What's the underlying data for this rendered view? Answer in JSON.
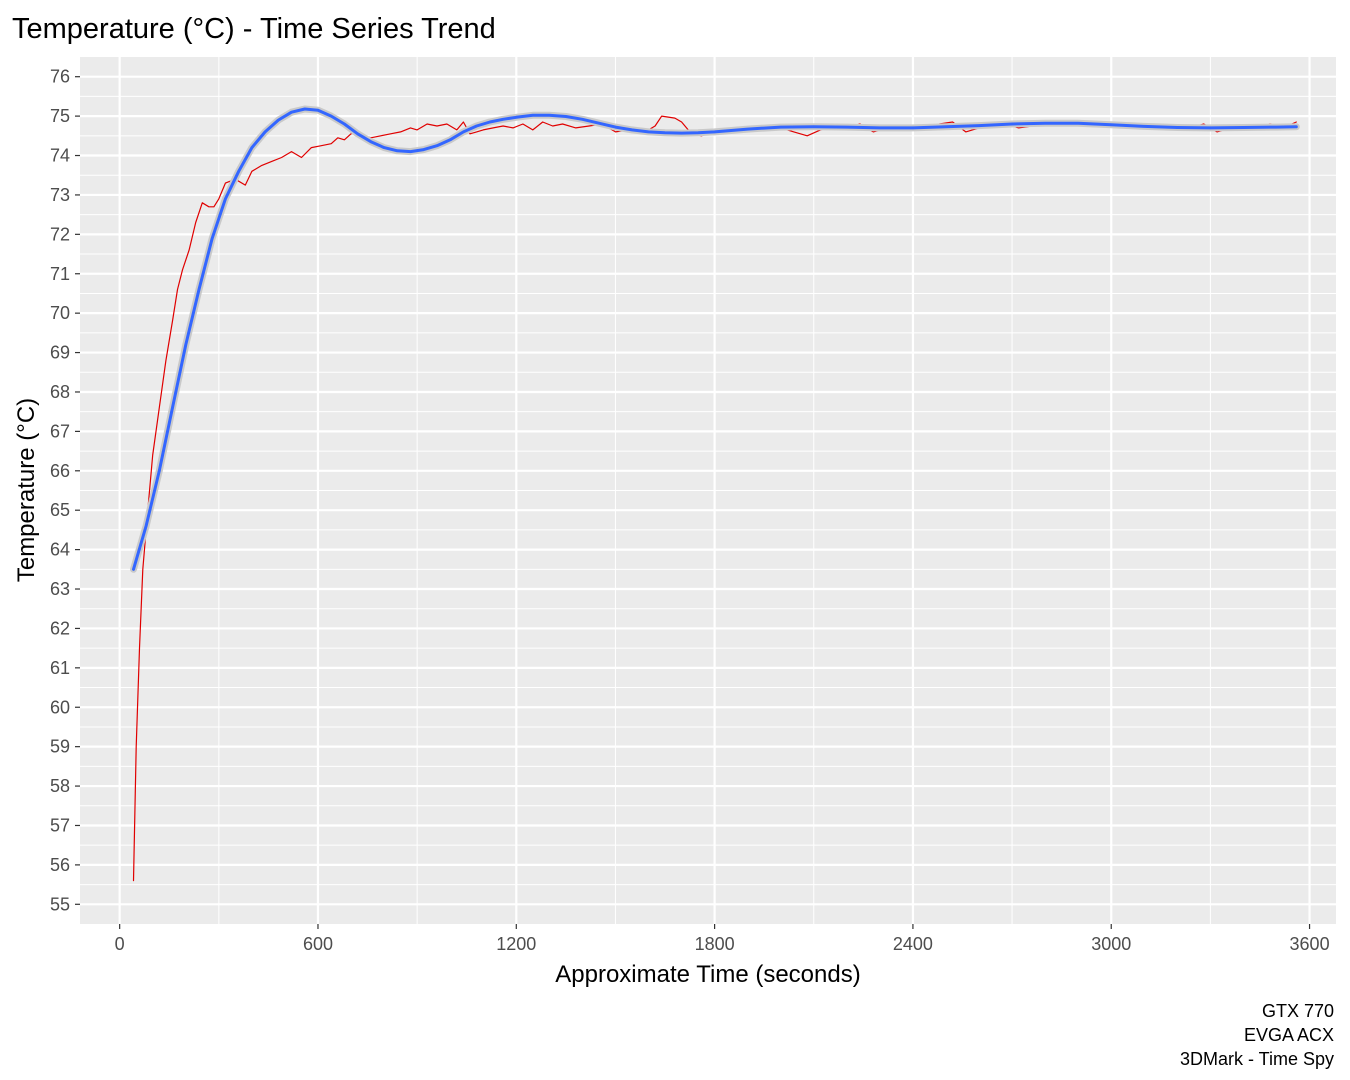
{
  "chart_data": {
    "type": "line",
    "title": "Temperature (°C) - Time Series Trend",
    "xlabel": "Approximate Time (seconds)",
    "ylabel": "Temperature (°C)",
    "xlim": [
      -120,
      3680
    ],
    "ylim": [
      54.5,
      76.5
    ],
    "x_ticks": [
      0,
      600,
      1200,
      1800,
      2400,
      3000,
      3600
    ],
    "y_ticks": [
      55,
      56,
      57,
      58,
      59,
      60,
      61,
      62,
      63,
      64,
      65,
      66,
      67,
      68,
      69,
      70,
      71,
      72,
      73,
      74,
      75,
      76
    ],
    "grid": true,
    "legend": "none",
    "caption": [
      "GTX 770",
      "EVGA ACX",
      "3DMark - Time Spy"
    ],
    "series": [
      {
        "color": "#e00000",
        "points": [
          [
            42,
            55.6
          ],
          [
            50,
            59
          ],
          [
            60,
            61.5
          ],
          [
            70,
            63.5
          ],
          [
            85,
            65
          ],
          [
            100,
            66.4
          ],
          [
            120,
            67.6
          ],
          [
            140,
            68.8
          ],
          [
            160,
            69.8
          ],
          [
            175,
            70.6
          ],
          [
            190,
            71.1
          ],
          [
            210,
            71.6
          ],
          [
            230,
            72.3
          ],
          [
            250,
            72.8
          ],
          [
            270,
            72.7
          ],
          [
            285,
            72.7
          ],
          [
            300,
            72.9
          ],
          [
            320,
            73.3
          ],
          [
            350,
            73.4
          ],
          [
            380,
            73.25
          ],
          [
            400,
            73.6
          ],
          [
            430,
            73.75
          ],
          [
            460,
            73.85
          ],
          [
            490,
            73.95
          ],
          [
            520,
            74.1
          ],
          [
            550,
            73.95
          ],
          [
            580,
            74.2
          ],
          [
            610,
            74.25
          ],
          [
            640,
            74.3
          ],
          [
            660,
            74.45
          ],
          [
            680,
            74.4
          ],
          [
            700,
            74.55
          ],
          [
            720,
            74.6
          ],
          [
            740,
            74.5
          ],
          [
            760,
            74.45
          ],
          [
            790,
            74.5
          ],
          [
            820,
            74.55
          ],
          [
            850,
            74.6
          ],
          [
            880,
            74.7
          ],
          [
            900,
            74.65
          ],
          [
            930,
            74.8
          ],
          [
            960,
            74.75
          ],
          [
            990,
            74.8
          ],
          [
            1020,
            74.65
          ],
          [
            1040,
            74.85
          ],
          [
            1060,
            74.55
          ],
          [
            1080,
            74.6
          ],
          [
            1100,
            74.65
          ],
          [
            1130,
            74.7
          ],
          [
            1160,
            74.75
          ],
          [
            1190,
            74.7
          ],
          [
            1220,
            74.8
          ],
          [
            1250,
            74.65
          ],
          [
            1280,
            74.85
          ],
          [
            1310,
            74.75
          ],
          [
            1340,
            74.8
          ],
          [
            1380,
            74.7
          ],
          [
            1420,
            74.75
          ],
          [
            1460,
            74.8
          ],
          [
            1500,
            74.6
          ],
          [
            1540,
            74.65
          ],
          [
            1580,
            74.55
          ],
          [
            1620,
            74.75
          ],
          [
            1640,
            75.0
          ],
          [
            1680,
            74.95
          ],
          [
            1700,
            74.85
          ],
          [
            1730,
            74.55
          ],
          [
            1760,
            74.5
          ],
          [
            1800,
            74.6
          ],
          [
            1850,
            74.65
          ],
          [
            1900,
            74.7
          ],
          [
            1950,
            74.75
          ],
          [
            2000,
            74.7
          ],
          [
            2040,
            74.6
          ],
          [
            2080,
            74.5
          ],
          [
            2120,
            74.65
          ],
          [
            2160,
            74.75
          ],
          [
            2200,
            74.7
          ],
          [
            2240,
            74.8
          ],
          [
            2280,
            74.6
          ],
          [
            2320,
            74.7
          ],
          [
            2360,
            74.75
          ],
          [
            2400,
            74.65
          ],
          [
            2440,
            74.7
          ],
          [
            2480,
            74.8
          ],
          [
            2520,
            74.85
          ],
          [
            2560,
            74.6
          ],
          [
            2600,
            74.7
          ],
          [
            2640,
            74.75
          ],
          [
            2680,
            74.8
          ],
          [
            2720,
            74.7
          ],
          [
            2760,
            74.75
          ],
          [
            2800,
            74.8
          ],
          [
            2840,
            74.85
          ],
          [
            2880,
            74.8
          ],
          [
            2920,
            74.75
          ],
          [
            2960,
            74.85
          ],
          [
            3000,
            74.8
          ],
          [
            3040,
            74.75
          ],
          [
            3080,
            74.8
          ],
          [
            3120,
            74.7
          ],
          [
            3160,
            74.75
          ],
          [
            3200,
            74.65
          ],
          [
            3240,
            74.7
          ],
          [
            3280,
            74.8
          ],
          [
            3320,
            74.6
          ],
          [
            3360,
            74.7
          ],
          [
            3400,
            74.75
          ],
          [
            3440,
            74.65
          ],
          [
            3480,
            74.8
          ],
          [
            3520,
            74.7
          ],
          [
            3560,
            74.85
          ]
        ]
      },
      {
        "color": "#3366ff",
        "points": [
          [
            42,
            63.5
          ],
          [
            80,
            64.6
          ],
          [
            120,
            66.0
          ],
          [
            160,
            67.6
          ],
          [
            200,
            69.2
          ],
          [
            240,
            70.6
          ],
          [
            280,
            71.9
          ],
          [
            320,
            72.9
          ],
          [
            360,
            73.6
          ],
          [
            400,
            74.2
          ],
          [
            440,
            74.6
          ],
          [
            480,
            74.9
          ],
          [
            520,
            75.1
          ],
          [
            560,
            75.18
          ],
          [
            600,
            75.15
          ],
          [
            640,
            75.0
          ],
          [
            680,
            74.8
          ],
          [
            720,
            74.55
          ],
          [
            760,
            74.35
          ],
          [
            800,
            74.2
          ],
          [
            840,
            74.12
          ],
          [
            880,
            74.1
          ],
          [
            920,
            74.15
          ],
          [
            960,
            74.25
          ],
          [
            1000,
            74.4
          ],
          [
            1040,
            74.6
          ],
          [
            1080,
            74.75
          ],
          [
            1120,
            74.85
          ],
          [
            1160,
            74.92
          ],
          [
            1200,
            74.97
          ],
          [
            1250,
            75.02
          ],
          [
            1300,
            75.02
          ],
          [
            1350,
            74.99
          ],
          [
            1400,
            74.92
          ],
          [
            1450,
            74.82
          ],
          [
            1500,
            74.72
          ],
          [
            1550,
            74.65
          ],
          [
            1600,
            74.6
          ],
          [
            1650,
            74.58
          ],
          [
            1700,
            74.57
          ],
          [
            1750,
            74.58
          ],
          [
            1800,
            74.6
          ],
          [
            1900,
            74.67
          ],
          [
            2000,
            74.72
          ],
          [
            2100,
            74.73
          ],
          [
            2200,
            74.72
          ],
          [
            2300,
            74.7
          ],
          [
            2400,
            74.7
          ],
          [
            2500,
            74.73
          ],
          [
            2600,
            74.76
          ],
          [
            2700,
            74.8
          ],
          [
            2800,
            74.82
          ],
          [
            2900,
            74.82
          ],
          [
            3000,
            74.78
          ],
          [
            3100,
            74.74
          ],
          [
            3200,
            74.71
          ],
          [
            3300,
            74.7
          ],
          [
            3400,
            74.71
          ],
          [
            3500,
            74.72
          ],
          [
            3560,
            74.73
          ]
        ]
      }
    ]
  }
}
